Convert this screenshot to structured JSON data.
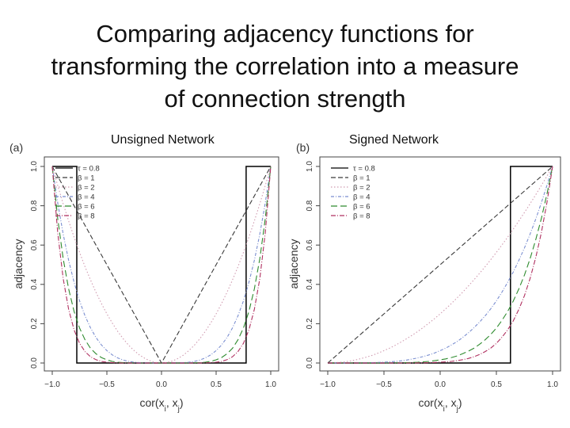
{
  "slide": {
    "title": "Comparing adjacency functions for\ntransforming the correlation into a measure\nof connection strength"
  },
  "chart_data": [
    {
      "type": "line",
      "panel_label": "(a)",
      "caption": "Unsigned Network",
      "xlabel": "cor(x_i, x_j)",
      "ylabel": "adjacency",
      "xlim": [
        -1.0,
        1.0
      ],
      "ylim": [
        0.0,
        1.0
      ],
      "xticks": [
        "-1.0",
        "-0.5",
        "0.0",
        "0.5",
        "1.0"
      ],
      "yticks": [
        "0.0",
        "0.2",
        "0.4",
        "0.6",
        "0.8",
        "1.0"
      ],
      "legend_position": "top-left",
      "x": [
        -1.0,
        -0.95,
        -0.9,
        -0.85,
        -0.8,
        -0.75,
        -0.7,
        -0.65,
        -0.6,
        -0.55,
        -0.5,
        -0.45,
        -0.4,
        -0.35,
        -0.3,
        -0.25,
        -0.2,
        -0.15,
        -0.1,
        -0.05,
        0.0,
        0.05,
        0.1,
        0.15,
        0.2,
        0.25,
        0.3,
        0.35,
        0.4,
        0.45,
        0.5,
        0.55,
        0.6,
        0.65,
        0.7,
        0.75,
        0.8,
        0.85,
        0.9,
        0.95,
        1.0
      ],
      "series": [
        {
          "name": "τ = 0.8",
          "color": "#000000",
          "dash": "solid",
          "kind": "step",
          "values": [
            1,
            1,
            1,
            1,
            1,
            0,
            0,
            0,
            0,
            0,
            0,
            0,
            0,
            0,
            0,
            0,
            0,
            0,
            0,
            0,
            0,
            0,
            0,
            0,
            0,
            0,
            0,
            0,
            0,
            0,
            0,
            0,
            0,
            0,
            0,
            0,
            1,
            1,
            1,
            1,
            1
          ]
        },
        {
          "name": "β = 1",
          "color": "#3a3a3a",
          "dash": "6 3",
          "values": [
            1.0,
            0.95,
            0.9,
            0.85,
            0.8,
            0.75,
            0.7,
            0.65,
            0.6,
            0.55,
            0.5,
            0.45,
            0.4,
            0.35,
            0.3,
            0.25,
            0.2,
            0.15,
            0.1,
            0.05,
            0.0,
            0.05,
            0.1,
            0.15,
            0.2,
            0.25,
            0.3,
            0.35,
            0.4,
            0.45,
            0.5,
            0.55,
            0.6,
            0.65,
            0.7,
            0.75,
            0.8,
            0.85,
            0.9,
            0.95,
            1.0
          ]
        },
        {
          "name": "β = 2",
          "color": "#d09bb0",
          "dash": "1.5 2.5",
          "values": [
            1.0,
            0.903,
            0.81,
            0.723,
            0.64,
            0.563,
            0.49,
            0.423,
            0.36,
            0.303,
            0.25,
            0.203,
            0.16,
            0.123,
            0.09,
            0.063,
            0.04,
            0.023,
            0.01,
            0.003,
            0.0,
            0.003,
            0.01,
            0.023,
            0.04,
            0.063,
            0.09,
            0.123,
            0.16,
            0.203,
            0.25,
            0.303,
            0.36,
            0.423,
            0.49,
            0.563,
            0.64,
            0.723,
            0.81,
            0.903,
            1.0
          ]
        },
        {
          "name": "β = 4",
          "color": "#7a8ed0",
          "dash": "4 2 1 2",
          "values": [
            1.0,
            0.815,
            0.656,
            0.522,
            0.41,
            0.316,
            0.24,
            0.179,
            0.13,
            0.092,
            0.063,
            0.041,
            0.026,
            0.015,
            0.008,
            0.004,
            0.002,
            0.001,
            0.0,
            0.0,
            0.0,
            0.0,
            0.0,
            0.001,
            0.002,
            0.004,
            0.008,
            0.015,
            0.026,
            0.041,
            0.063,
            0.092,
            0.13,
            0.179,
            0.24,
            0.316,
            0.41,
            0.522,
            0.656,
            0.815,
            1.0
          ]
        },
        {
          "name": "β = 6",
          "color": "#2e8b2e",
          "dash": "8 4",
          "values": [
            1.0,
            0.735,
            0.531,
            0.377,
            0.262,
            0.178,
            0.118,
            0.075,
            0.047,
            0.028,
            0.016,
            0.008,
            0.004,
            0.002,
            0.001,
            0.0,
            0.0,
            0.0,
            0.0,
            0.0,
            0.0,
            0.0,
            0.0,
            0.0,
            0.0,
            0.0,
            0.001,
            0.002,
            0.004,
            0.008,
            0.016,
            0.028,
            0.047,
            0.075,
            0.118,
            0.178,
            0.262,
            0.377,
            0.531,
            0.735,
            1.0
          ]
        },
        {
          "name": "β = 8",
          "color": "#b03060",
          "dash": "6 2 1 2",
          "values": [
            1.0,
            0.663,
            0.43,
            0.273,
            0.168,
            0.1,
            0.058,
            0.032,
            0.017,
            0.008,
            0.004,
            0.002,
            0.001,
            0.0,
            0.0,
            0.0,
            0.0,
            0.0,
            0.0,
            0.0,
            0.0,
            0.0,
            0.0,
            0.0,
            0.0,
            0.0,
            0.0,
            0.0,
            0.001,
            0.002,
            0.004,
            0.008,
            0.017,
            0.032,
            0.058,
            0.1,
            0.168,
            0.273,
            0.43,
            0.663,
            1.0
          ]
        }
      ]
    },
    {
      "type": "line",
      "panel_label": "(b)",
      "caption": "Signed Network",
      "xlabel": "cor(x_i, x_j)",
      "ylabel": "adjacency",
      "xlim": [
        -1.0,
        1.0
      ],
      "ylim": [
        0.0,
        1.0
      ],
      "xticks": [
        "-1.0",
        "-0.5",
        "0.0",
        "0.5",
        "1.0"
      ],
      "yticks": [
        "0.0",
        "0.2",
        "0.4",
        "0.6",
        "0.8",
        "1.0"
      ],
      "legend_position": "top-left",
      "x": [
        -1.0,
        -0.95,
        -0.9,
        -0.85,
        -0.8,
        -0.75,
        -0.7,
        -0.65,
        -0.6,
        -0.55,
        -0.5,
        -0.45,
        -0.4,
        -0.35,
        -0.3,
        -0.25,
        -0.2,
        -0.15,
        -0.1,
        -0.05,
        0.0,
        0.05,
        0.1,
        0.15,
        0.2,
        0.25,
        0.3,
        0.35,
        0.4,
        0.45,
        0.5,
        0.55,
        0.6,
        0.65,
        0.7,
        0.75,
        0.8,
        0.85,
        0.9,
        0.95,
        1.0
      ],
      "series": [
        {
          "name": "τ = 0.8",
          "color": "#000000",
          "dash": "solid",
          "kind": "step",
          "values": [
            0,
            0,
            0,
            0,
            0,
            0,
            0,
            0,
            0,
            0,
            0,
            0,
            0,
            0,
            0,
            0,
            0,
            0,
            0,
            0,
            0,
            0,
            0,
            0,
            0,
            0,
            0,
            0,
            0,
            0,
            0,
            0,
            0,
            1,
            1,
            1,
            1,
            1,
            1,
            1,
            1
          ]
        },
        {
          "name": "β = 1",
          "color": "#3a3a3a",
          "dash": "6 3",
          "values": [
            0.0,
            0.025,
            0.05,
            0.075,
            0.1,
            0.125,
            0.15,
            0.175,
            0.2,
            0.225,
            0.25,
            0.275,
            0.3,
            0.325,
            0.35,
            0.375,
            0.4,
            0.425,
            0.45,
            0.475,
            0.5,
            0.525,
            0.55,
            0.575,
            0.6,
            0.625,
            0.65,
            0.675,
            0.7,
            0.725,
            0.75,
            0.775,
            0.8,
            0.825,
            0.85,
            0.875,
            0.9,
            0.925,
            0.95,
            0.975,
            1.0
          ]
        },
        {
          "name": "β = 2",
          "color": "#d09bb0",
          "dash": "1.5 2.5",
          "values": [
            0.0,
            0.001,
            0.003,
            0.006,
            0.01,
            0.016,
            0.023,
            0.031,
            0.04,
            0.051,
            0.063,
            0.076,
            0.09,
            0.106,
            0.123,
            0.141,
            0.16,
            0.181,
            0.203,
            0.226,
            0.25,
            0.276,
            0.303,
            0.331,
            0.36,
            0.391,
            0.423,
            0.456,
            0.49,
            0.526,
            0.563,
            0.601,
            0.64,
            0.681,
            0.723,
            0.766,
            0.81,
            0.856,
            0.903,
            0.951,
            1.0
          ]
        },
        {
          "name": "β = 4",
          "color": "#7a8ed0",
          "dash": "4 2 1 2",
          "values": [
            0.0,
            0.0,
            0.0,
            0.0,
            0.0,
            0.0,
            0.001,
            0.001,
            0.002,
            0.003,
            0.004,
            0.006,
            0.008,
            0.011,
            0.015,
            0.02,
            0.026,
            0.033,
            0.041,
            0.051,
            0.063,
            0.076,
            0.092,
            0.109,
            0.13,
            0.153,
            0.179,
            0.208,
            0.24,
            0.276,
            0.316,
            0.361,
            0.41,
            0.463,
            0.522,
            0.586,
            0.656,
            0.732,
            0.815,
            0.904,
            1.0
          ]
        },
        {
          "name": "β = 6",
          "color": "#2e8b2e",
          "dash": "8 4",
          "values": [
            0.0,
            0.0,
            0.0,
            0.0,
            0.0,
            0.0,
            0.0,
            0.0,
            0.0,
            0.0,
            0.0,
            0.0,
            0.001,
            0.001,
            0.002,
            0.003,
            0.004,
            0.006,
            0.008,
            0.012,
            0.016,
            0.021,
            0.028,
            0.036,
            0.047,
            0.06,
            0.075,
            0.095,
            0.118,
            0.145,
            0.178,
            0.217,
            0.262,
            0.315,
            0.377,
            0.448,
            0.531,
            0.627,
            0.735,
            0.86,
            1.0
          ]
        },
        {
          "name": "β = 8",
          "color": "#b03060",
          "dash": "6 2 1 2",
          "values": [
            0.0,
            0.0,
            0.0,
            0.0,
            0.0,
            0.0,
            0.0,
            0.0,
            0.0,
            0.0,
            0.0,
            0.0,
            0.0,
            0.0,
            0.0,
            0.0,
            0.001,
            0.001,
            0.002,
            0.003,
            0.004,
            0.006,
            0.008,
            0.012,
            0.017,
            0.023,
            0.032,
            0.043,
            0.058,
            0.076,
            0.1,
            0.131,
            0.168,
            0.214,
            0.273,
            0.343,
            0.43,
            0.536,
            0.663,
            0.817,
            1.0
          ]
        }
      ]
    }
  ]
}
